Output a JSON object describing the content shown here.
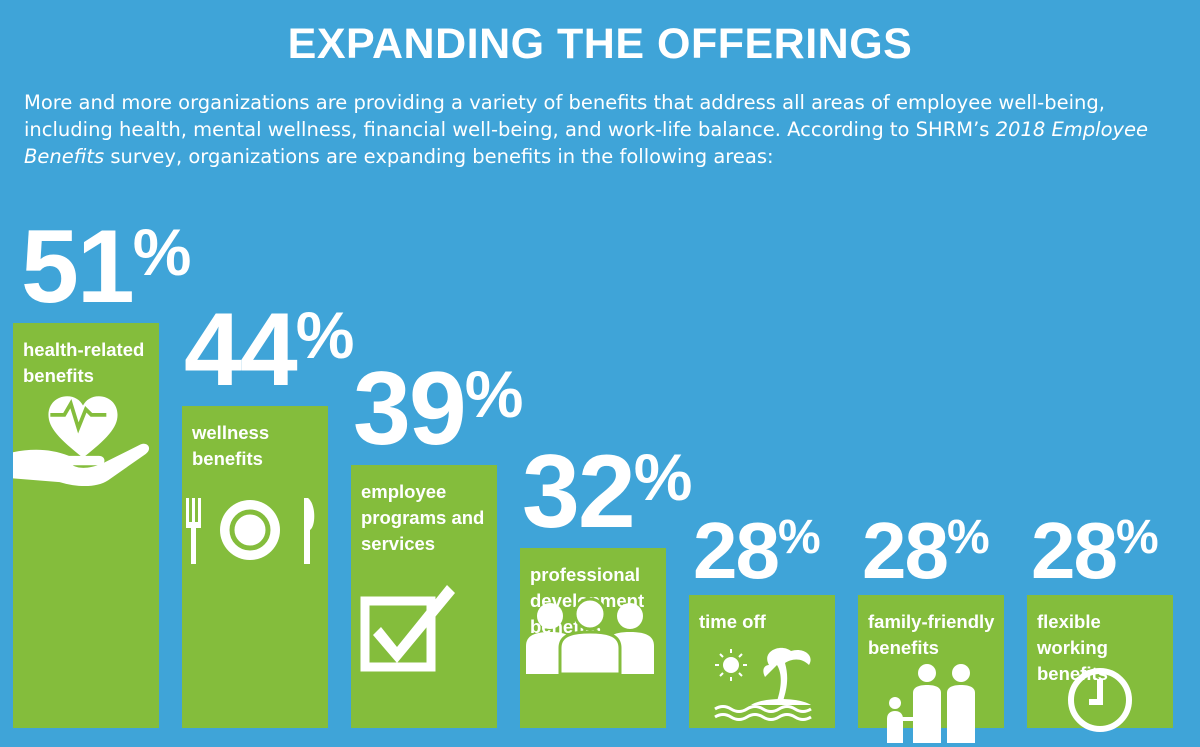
{
  "title": "EXPANDING THE OFFERINGS",
  "intro": {
    "part1": "More and more organizations are providing a variety of benefits that address all areas of employee well-being, including health, mental wellness, financial well-being, and work-life balance. According to SHRM’s ",
    "italic": "2018 Employee Benefits",
    "part2": " survey, organizations are expanding benefits in the following areas:"
  },
  "colors": {
    "background": "#3fa4d8",
    "bar": "#84bd3c",
    "text": "#ffffff"
  },
  "chart_data": {
    "type": "bar",
    "categories": [
      "health-related benefits",
      "wellness benefits",
      "employee programs and services",
      "professional development benefits",
      "time off",
      "family-friendly benefits",
      "flexible working benefits"
    ],
    "values": [
      51,
      44,
      39,
      32,
      28,
      28,
      28
    ],
    "value_labels": [
      "51",
      "44",
      "39",
      "32",
      "28",
      "28",
      "28"
    ],
    "unit": "%",
    "icons": [
      "heart-hand-icon",
      "plate-cutlery-icon",
      "checkbox-icon",
      "people-icon",
      "island-icon",
      "family-icon",
      "clock-icon"
    ]
  }
}
